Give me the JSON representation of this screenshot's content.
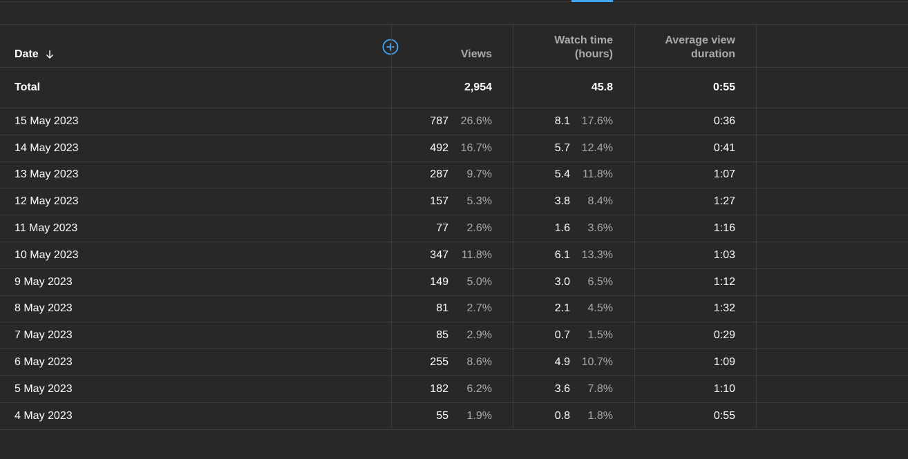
{
  "header": {
    "date": "Date",
    "views": "Views",
    "watch_time_line1": "Watch time",
    "watch_time_line2": "(hours)",
    "avd_line1": "Average view",
    "avd_line2": "duration"
  },
  "total": {
    "label": "Total",
    "views": "2,954",
    "watch_time": "45.8",
    "avd": "0:55"
  },
  "rows": [
    {
      "date": "15 May 2023",
      "views": "787",
      "views_pct": "26.6%",
      "wt": "8.1",
      "wt_pct": "17.6%",
      "avd": "0:36"
    },
    {
      "date": "14 May 2023",
      "views": "492",
      "views_pct": "16.7%",
      "wt": "5.7",
      "wt_pct": "12.4%",
      "avd": "0:41"
    },
    {
      "date": "13 May 2023",
      "views": "287",
      "views_pct": "9.7%",
      "wt": "5.4",
      "wt_pct": "11.8%",
      "avd": "1:07"
    },
    {
      "date": "12 May 2023",
      "views": "157",
      "views_pct": "5.3%",
      "wt": "3.8",
      "wt_pct": "8.4%",
      "avd": "1:27"
    },
    {
      "date": "11 May 2023",
      "views": "77",
      "views_pct": "2.6%",
      "wt": "1.6",
      "wt_pct": "3.6%",
      "avd": "1:16"
    },
    {
      "date": "10 May 2023",
      "views": "347",
      "views_pct": "11.8%",
      "wt": "6.1",
      "wt_pct": "13.3%",
      "avd": "1:03"
    },
    {
      "date": "9 May 2023",
      "views": "149",
      "views_pct": "5.0%",
      "wt": "3.0",
      "wt_pct": "6.5%",
      "avd": "1:12"
    },
    {
      "date": "8 May 2023",
      "views": "81",
      "views_pct": "2.7%",
      "wt": "2.1",
      "wt_pct": "4.5%",
      "avd": "1:32"
    },
    {
      "date": "7 May 2023",
      "views": "85",
      "views_pct": "2.9%",
      "wt": "0.7",
      "wt_pct": "1.5%",
      "avd": "0:29"
    },
    {
      "date": "6 May 2023",
      "views": "255",
      "views_pct": "8.6%",
      "wt": "4.9",
      "wt_pct": "10.7%",
      "avd": "1:09"
    },
    {
      "date": "5 May 2023",
      "views": "182",
      "views_pct": "6.2%",
      "wt": "3.6",
      "wt_pct": "7.8%",
      "avd": "1:10"
    },
    {
      "date": "4 May 2023",
      "views": "55",
      "views_pct": "1.9%",
      "wt": "0.8",
      "wt_pct": "1.8%",
      "avd": "0:55"
    }
  ],
  "colors": {
    "background": "#282828",
    "accent": "#3ea6ff",
    "muted_text": "#aaaaaa",
    "divider": "#3d3d3d"
  },
  "icons": {
    "sort": "arrow-down-icon",
    "add_column": "plus-circle-icon"
  }
}
